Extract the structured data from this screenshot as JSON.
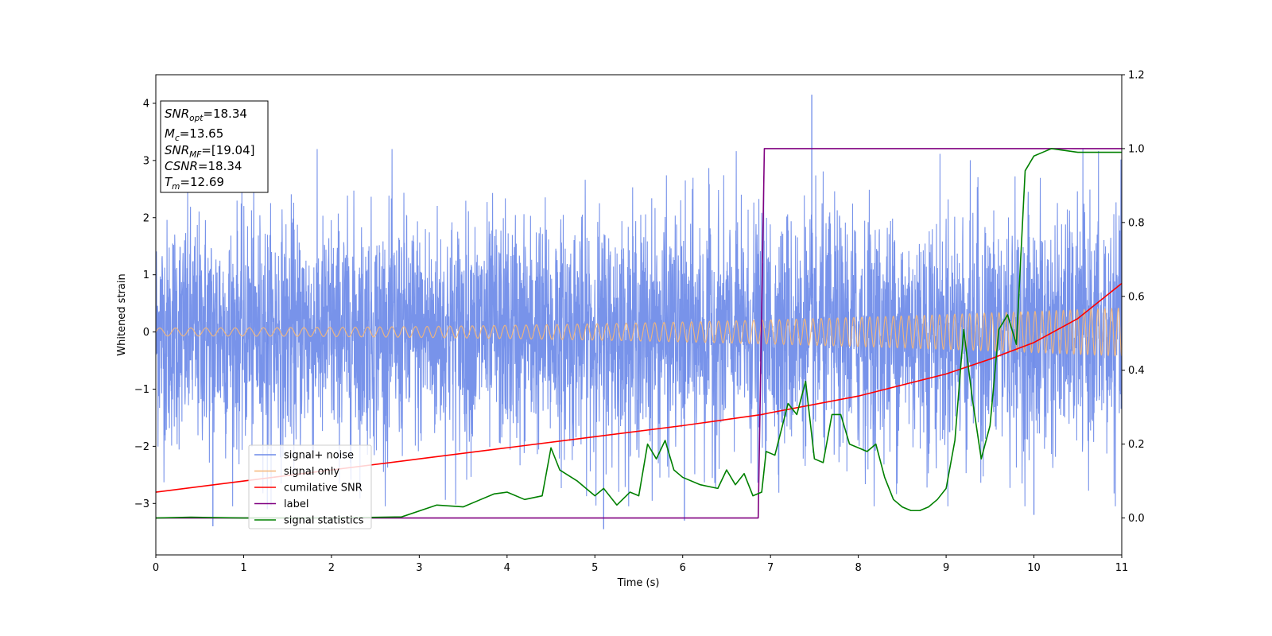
{
  "chart_data": {
    "type": "line",
    "title": "",
    "xlabel": "Time (s)",
    "ylabel": "Whitened strain",
    "xlim": [
      0,
      11
    ],
    "ylim": [
      -3.9,
      4.5
    ],
    "y2lim": [
      -0.1,
      1.2
    ],
    "x_ticks": [
      "0",
      "1",
      "2",
      "3",
      "4",
      "5",
      "6",
      "7",
      "8",
      "9",
      "10",
      "11"
    ],
    "y_ticks": [
      "−3",
      "−2",
      "−1",
      "0",
      "1",
      "2",
      "3",
      "4"
    ],
    "y2_ticks": [
      "0.0",
      "0.2",
      "0.4",
      "0.6",
      "0.8",
      "1.0",
      "1.2"
    ],
    "grid": false,
    "legend_position": "lower-left",
    "colors": {
      "noise": "#6d8ae8",
      "signal": "#f5b778",
      "snr": "#ff0000",
      "label": "#800080",
      "stat": "#008000"
    },
    "annotation": [
      {
        "sym": "SNR",
        "sub": "opt",
        "val": "=18.34"
      },
      {
        "sym": "M",
        "sub": "c",
        "val": "=13.65"
      },
      {
        "sym": "SNR",
        "sub": "MF",
        "val": "=[19.04]"
      },
      {
        "sym": "CSNR",
        "sub": "",
        "val": "=18.34"
      },
      {
        "sym": "T",
        "sub": "m",
        "val": "=12.69"
      }
    ],
    "series": [
      {
        "name": "signal+ noise",
        "axis": "left",
        "kind": "noise",
        "std": 1.0,
        "spikes": [
          [
            0.65,
            -3.4
          ],
          [
            1.27,
            -3.1
          ],
          [
            5.1,
            -3.45
          ],
          [
            6.02,
            -3.3
          ],
          [
            7.47,
            4.15
          ],
          [
            10.0,
            -3.2
          ]
        ]
      },
      {
        "name": "signal only",
        "axis": "left",
        "kind": "chirp",
        "amplitude_start": 0.07,
        "amplitude_end": 0.42,
        "cycles_per_s_start": 5.5,
        "cycles_per_s_end": 13
      },
      {
        "name": "cumilative SNR",
        "axis": "right",
        "x": [
          0,
          1,
          2,
          3,
          4,
          5,
          6,
          6.9,
          7,
          8,
          9,
          9.5,
          10,
          10.5,
          11
        ],
        "y": [
          0.07,
          0.1,
          0.13,
          0.16,
          0.19,
          0.22,
          0.25,
          0.28,
          0.285,
          0.33,
          0.39,
          0.43,
          0.475,
          0.54,
          0.635
        ]
      },
      {
        "name": "label",
        "axis": "right",
        "x": [
          0,
          6.86,
          6.93,
          11
        ],
        "y": [
          0,
          0,
          1,
          1
        ]
      },
      {
        "name": "signal statistics",
        "axis": "right",
        "x": [
          0,
          0.4,
          1,
          2,
          2.8,
          3.2,
          3.5,
          3.7,
          3.85,
          4.0,
          4.2,
          4.4,
          4.5,
          4.6,
          4.8,
          5.0,
          5.1,
          5.25,
          5.4,
          5.5,
          5.6,
          5.7,
          5.8,
          5.9,
          6.0,
          6.2,
          6.4,
          6.5,
          6.6,
          6.7,
          6.8,
          6.9,
          6.95,
          7.05,
          7.2,
          7.3,
          7.4,
          7.5,
          7.6,
          7.7,
          7.8,
          7.9,
          8.0,
          8.1,
          8.2,
          8.3,
          8.4,
          8.5,
          8.6,
          8.7,
          8.8,
          8.9,
          9.0,
          9.1,
          9.2,
          9.3,
          9.4,
          9.5,
          9.6,
          9.7,
          9.8,
          9.9,
          10.0,
          10.1,
          10.2,
          10.5,
          10.8,
          11.0
        ],
        "y": [
          0,
          0.002,
          0,
          0,
          0.003,
          0.035,
          0.03,
          0.05,
          0.065,
          0.07,
          0.05,
          0.06,
          0.19,
          0.13,
          0.1,
          0.06,
          0.08,
          0.035,
          0.07,
          0.06,
          0.2,
          0.16,
          0.21,
          0.13,
          0.11,
          0.09,
          0.08,
          0.13,
          0.09,
          0.12,
          0.06,
          0.07,
          0.18,
          0.17,
          0.31,
          0.28,
          0.37,
          0.16,
          0.15,
          0.28,
          0.28,
          0.2,
          0.19,
          0.18,
          0.2,
          0.11,
          0.05,
          0.03,
          0.02,
          0.02,
          0.03,
          0.05,
          0.08,
          0.21,
          0.51,
          0.32,
          0.16,
          0.25,
          0.51,
          0.55,
          0.47,
          0.94,
          0.98,
          0.99,
          1.0,
          0.99,
          0.99,
          0.99
        ]
      }
    ]
  }
}
